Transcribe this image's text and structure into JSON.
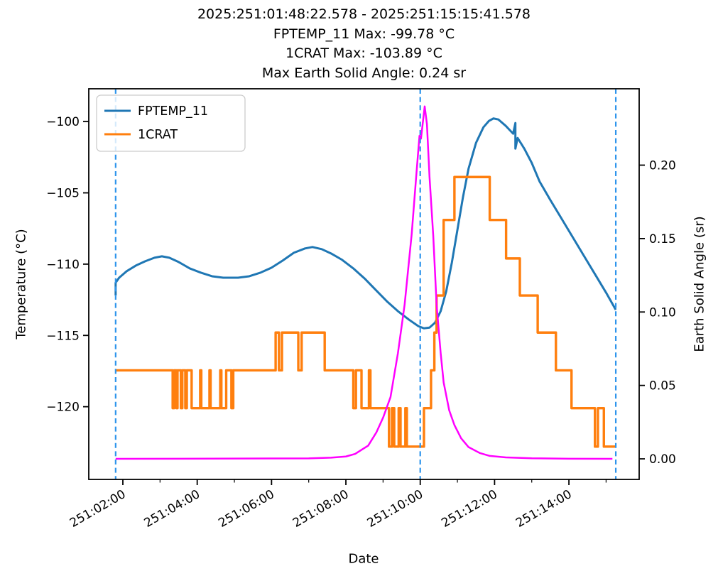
{
  "titles": {
    "line1": "2025:251:01:48:22.578 - 2025:251:15:15:41.578",
    "line2": "FPTEMP_11 Max: -99.78 °C",
    "line3": "1CRAT Max: -103.89 °C",
    "line4": "Max Earth Solid Angle: 0.24 sr"
  },
  "chart_data": {
    "type": "line",
    "title": "2025:251:01:48:22.578 - 2025:251:15:15:41.578",
    "stats": {
      "fptemp_11_max_c": -99.78,
      "crat_max_c": -103.89,
      "max_earth_solid_angle_sr": 0.24
    },
    "x_axis": {
      "label": "Date",
      "unit": "hours of day 251",
      "range": [
        1.083,
        15.89
      ],
      "major_ticks": [
        {
          "t": 2,
          "label": "251:02:00"
        },
        {
          "t": 4,
          "label": "251:04:00"
        },
        {
          "t": 6,
          "label": "251:06:00"
        },
        {
          "t": 8,
          "label": "251:08:00"
        },
        {
          "t": 10,
          "label": "251:10:00"
        },
        {
          "t": 12,
          "label": "251:12:00"
        },
        {
          "t": 14,
          "label": "251:14:00"
        }
      ],
      "minor_ticks": [
        3,
        5,
        7,
        9,
        11,
        13,
        15
      ]
    },
    "y_left": {
      "label": "Temperature (°C)",
      "range": [
        -125.1,
        -97.7
      ],
      "ticks": [
        {
          "v": -100,
          "label": "−100"
        },
        {
          "v": -105,
          "label": "−105"
        },
        {
          "v": -110,
          "label": "−110"
        },
        {
          "v": -115,
          "label": "−115"
        },
        {
          "v": -120,
          "label": "−120"
        }
      ]
    },
    "y_right": {
      "label": "Earth Solid Angle (sr)",
      "range": [
        -0.014,
        0.252
      ],
      "ticks": [
        {
          "v": 0.0,
          "label": "0.00"
        },
        {
          "v": 0.05,
          "label": "0.05"
        },
        {
          "v": 0.1,
          "label": "0.10"
        },
        {
          "v": 0.15,
          "label": "0.15"
        },
        {
          "v": 0.2,
          "label": "0.20"
        }
      ]
    },
    "vlines": {
      "color": "#2e95ec",
      "style": "dashed",
      "times": [
        1.806,
        10.0,
        15.261
      ],
      "meaning": [
        "start 01:48:22",
        "251:10:00:00",
        "end 15:15:41"
      ]
    },
    "legend": {
      "position": "upper left",
      "entries": [
        "FPTEMP_11",
        "1CRAT"
      ]
    },
    "series": [
      {
        "name": "FPTEMP_11",
        "color": "#1f77b4",
        "axis": "left",
        "width": 3.0,
        "in_legend": true,
        "points": [
          [
            1.806,
            -112.2
          ],
          [
            1.806,
            -111.3
          ],
          [
            1.9,
            -110.95
          ],
          [
            2.1,
            -110.5
          ],
          [
            2.35,
            -110.1
          ],
          [
            2.6,
            -109.8
          ],
          [
            2.85,
            -109.55
          ],
          [
            3.05,
            -109.45
          ],
          [
            3.25,
            -109.55
          ],
          [
            3.5,
            -109.85
          ],
          [
            3.8,
            -110.3
          ],
          [
            4.1,
            -110.6
          ],
          [
            4.4,
            -110.85
          ],
          [
            4.7,
            -110.95
          ],
          [
            5.1,
            -110.95
          ],
          [
            5.4,
            -110.85
          ],
          [
            5.7,
            -110.6
          ],
          [
            6.0,
            -110.25
          ],
          [
            6.3,
            -109.75
          ],
          [
            6.6,
            -109.2
          ],
          [
            6.9,
            -108.9
          ],
          [
            7.1,
            -108.8
          ],
          [
            7.35,
            -108.95
          ],
          [
            7.6,
            -109.25
          ],
          [
            7.9,
            -109.7
          ],
          [
            8.2,
            -110.3
          ],
          [
            8.5,
            -111.0
          ],
          [
            8.8,
            -111.8
          ],
          [
            9.1,
            -112.6
          ],
          [
            9.4,
            -113.3
          ],
          [
            9.7,
            -113.9
          ],
          [
            9.95,
            -114.35
          ],
          [
            10.1,
            -114.5
          ],
          [
            10.25,
            -114.45
          ],
          [
            10.4,
            -114.1
          ],
          [
            10.55,
            -113.3
          ],
          [
            10.7,
            -111.9
          ],
          [
            10.85,
            -109.9
          ],
          [
            11.0,
            -107.6
          ],
          [
            11.15,
            -105.3
          ],
          [
            11.3,
            -103.3
          ],
          [
            11.5,
            -101.5
          ],
          [
            11.7,
            -100.4
          ],
          [
            11.85,
            -99.95
          ],
          [
            11.97,
            -99.78
          ],
          [
            12.1,
            -99.85
          ],
          [
            12.3,
            -100.3
          ],
          [
            12.5,
            -100.85
          ],
          [
            12.56,
            -100.1
          ],
          [
            12.56,
            -101.9
          ],
          [
            12.62,
            -101.15
          ],
          [
            12.8,
            -101.9
          ],
          [
            13.0,
            -102.9
          ],
          [
            13.21,
            -104.2
          ],
          [
            13.5,
            -105.5
          ],
          [
            13.8,
            -106.8
          ],
          [
            14.1,
            -108.1
          ],
          [
            14.4,
            -109.4
          ],
          [
            14.7,
            -110.7
          ],
          [
            15.0,
            -112.0
          ],
          [
            15.26,
            -113.2
          ]
        ]
      },
      {
        "name": "1CRAT",
        "color": "#ff7f0e",
        "axis": "left",
        "width": 3.4,
        "in_legend": true,
        "points": [
          [
            1.806,
            -117.45
          ],
          [
            3.34,
            -117.45
          ],
          [
            3.34,
            -120.1
          ],
          [
            3.38,
            -120.1
          ],
          [
            3.38,
            -117.45
          ],
          [
            3.44,
            -117.45
          ],
          [
            3.44,
            -120.1
          ],
          [
            3.47,
            -120.1
          ],
          [
            3.47,
            -117.45
          ],
          [
            3.56,
            -117.45
          ],
          [
            3.56,
            -120.1
          ],
          [
            3.6,
            -120.1
          ],
          [
            3.6,
            -117.45
          ],
          [
            3.68,
            -117.45
          ],
          [
            3.68,
            -120.1
          ],
          [
            3.72,
            -120.1
          ],
          [
            3.72,
            -117.45
          ],
          [
            3.85,
            -117.45
          ],
          [
            3.85,
            -120.1
          ],
          [
            4.08,
            -120.1
          ],
          [
            4.08,
            -117.45
          ],
          [
            4.11,
            -117.45
          ],
          [
            4.11,
            -120.1
          ],
          [
            4.33,
            -120.1
          ],
          [
            4.33,
            -117.45
          ],
          [
            4.36,
            -117.45
          ],
          [
            4.36,
            -120.1
          ],
          [
            4.62,
            -120.1
          ],
          [
            4.62,
            -117.45
          ],
          [
            4.65,
            -117.45
          ],
          [
            4.65,
            -120.1
          ],
          [
            4.78,
            -120.1
          ],
          [
            4.78,
            -117.45
          ],
          [
            4.92,
            -117.45
          ],
          [
            4.92,
            -120.1
          ],
          [
            4.97,
            -120.1
          ],
          [
            4.97,
            -117.45
          ],
          [
            6.11,
            -117.45
          ],
          [
            6.11,
            -114.8
          ],
          [
            6.2,
            -114.8
          ],
          [
            6.2,
            -117.45
          ],
          [
            6.28,
            -117.45
          ],
          [
            6.28,
            -114.8
          ],
          [
            6.72,
            -114.8
          ],
          [
            6.72,
            -117.45
          ],
          [
            6.81,
            -117.45
          ],
          [
            6.81,
            -114.8
          ],
          [
            7.43,
            -114.8
          ],
          [
            7.43,
            -117.45
          ],
          [
            8.2,
            -117.45
          ],
          [
            8.2,
            -120.1
          ],
          [
            8.27,
            -120.1
          ],
          [
            8.27,
            -117.45
          ],
          [
            8.42,
            -117.45
          ],
          [
            8.42,
            -120.1
          ],
          [
            8.62,
            -120.1
          ],
          [
            8.62,
            -117.45
          ],
          [
            8.66,
            -117.45
          ],
          [
            8.66,
            -120.1
          ],
          [
            9.16,
            -120.1
          ],
          [
            9.16,
            -122.8
          ],
          [
            9.24,
            -122.8
          ],
          [
            9.24,
            -120.1
          ],
          [
            9.3,
            -120.1
          ],
          [
            9.3,
            -122.8
          ],
          [
            9.42,
            -122.8
          ],
          [
            9.42,
            -120.1
          ],
          [
            9.47,
            -120.1
          ],
          [
            9.47,
            -122.8
          ],
          [
            9.6,
            -122.8
          ],
          [
            9.6,
            -120.1
          ],
          [
            9.64,
            -120.1
          ],
          [
            9.64,
            -122.8
          ],
          [
            10.1,
            -122.8
          ],
          [
            10.1,
            -120.1
          ],
          [
            10.29,
            -120.1
          ],
          [
            10.29,
            -117.45
          ],
          [
            10.38,
            -117.45
          ],
          [
            10.38,
            -114.8
          ],
          [
            10.44,
            -114.8
          ],
          [
            10.44,
            -112.2
          ],
          [
            10.63,
            -112.2
          ],
          [
            10.63,
            -106.9
          ],
          [
            10.92,
            -106.9
          ],
          [
            10.92,
            -103.89
          ],
          [
            11.87,
            -103.89
          ],
          [
            11.87,
            -106.9
          ],
          [
            12.31,
            -106.9
          ],
          [
            12.31,
            -109.6
          ],
          [
            12.68,
            -109.6
          ],
          [
            12.68,
            -112.2
          ],
          [
            13.16,
            -112.2
          ],
          [
            13.16,
            -114.8
          ],
          [
            13.65,
            -114.8
          ],
          [
            13.65,
            -117.45
          ],
          [
            14.07,
            -117.45
          ],
          [
            14.07,
            -120.1
          ],
          [
            14.7,
            -120.1
          ],
          [
            14.7,
            -122.8
          ],
          [
            14.78,
            -122.8
          ],
          [
            14.78,
            -120.1
          ],
          [
            14.94,
            -120.1
          ],
          [
            14.94,
            -122.8
          ],
          [
            15.26,
            -122.8
          ]
        ]
      },
      {
        "name": "Earth Solid Angle",
        "color": "#ff00ff",
        "axis": "right",
        "width": 2.5,
        "in_legend": false,
        "points": [
          [
            1.806,
            0.0
          ],
          [
            7.0,
            0.0003
          ],
          [
            7.6,
            0.0008
          ],
          [
            8.0,
            0.0016
          ],
          [
            8.25,
            0.0034
          ],
          [
            8.6,
            0.009
          ],
          [
            8.82,
            0.018
          ],
          [
            9.0,
            0.028
          ],
          [
            9.2,
            0.042
          ],
          [
            9.4,
            0.072
          ],
          [
            9.58,
            0.105
          ],
          [
            9.77,
            0.153
          ],
          [
            9.9,
            0.195
          ],
          [
            9.98,
            0.22
          ],
          [
            10.02,
            0.218
          ],
          [
            10.12,
            0.24
          ],
          [
            10.18,
            0.228
          ],
          [
            10.25,
            0.192
          ],
          [
            10.35,
            0.152
          ],
          [
            10.44,
            0.105
          ],
          [
            10.55,
            0.072
          ],
          [
            10.63,
            0.052
          ],
          [
            10.78,
            0.033
          ],
          [
            10.92,
            0.023
          ],
          [
            11.1,
            0.014
          ],
          [
            11.3,
            0.008
          ],
          [
            11.6,
            0.004
          ],
          [
            11.87,
            0.002
          ],
          [
            12.3,
            0.001
          ],
          [
            13.0,
            0.0004
          ],
          [
            14.0,
            0.0001
          ],
          [
            15.17,
            0.0
          ]
        ]
      }
    ]
  },
  "labels": {
    "x": "Date",
    "y_left": "Temperature (°C)",
    "y_right": "Earth Solid Angle (sr)"
  }
}
